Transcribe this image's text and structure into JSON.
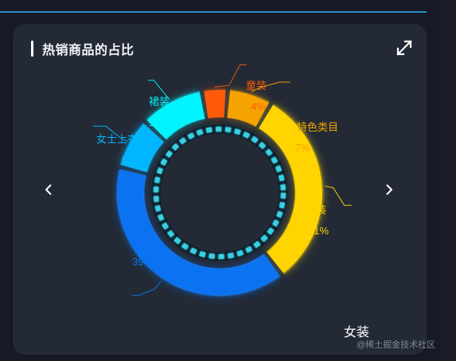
{
  "panel": {
    "title": "热销商品的占比",
    "selected_category": "女装",
    "expand_icon": "expand-icon",
    "prev_icon": "chevron-left-icon",
    "next_icon": "chevron-right-icon"
  },
  "watermark": "@稀土掘金技术社区",
  "chart_data": {
    "type": "pie",
    "variant": "donut",
    "title": "热销商品的占比",
    "series": [
      {
        "name": "热销商品的占比",
        "data": [
          {
            "name": "童装",
            "value": 4,
            "label": "4%",
            "color": "#ff5a08"
          },
          {
            "name": "特色类目",
            "value": 7,
            "label": "7%",
            "color": "#f5a300"
          },
          {
            "name": "裤装",
            "value": 31,
            "label": "31%",
            "color": "#ffd400"
          },
          {
            "name": "外套",
            "value": 39,
            "label": "39%",
            "color": "#0b73f2"
          },
          {
            "name": "女士上衣",
            "value": 8,
            "label": "8%",
            "color": "#00b6ff"
          },
          {
            "name": "裙装",
            "value": 10,
            "label": "10%",
            "color": "#00f4ff"
          }
        ]
      }
    ],
    "labels_visible": true,
    "legend": "none"
  },
  "colors": {
    "background": "#171924",
    "card": "#232a36",
    "accent_line": "#2b8dc1",
    "inner_ring": "#39d0e4",
    "text": "#ffffff",
    "muted": "#7f8795"
  }
}
